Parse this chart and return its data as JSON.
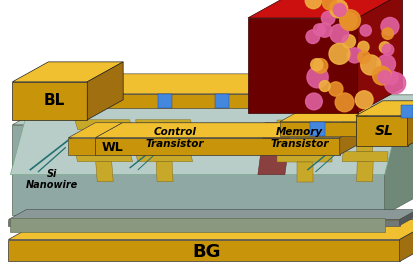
{
  "bg_color": "#ffffff",
  "labels": {
    "BL": "BL",
    "WL": "WL",
    "SL": "SL",
    "BG": "BG",
    "control": "Control\nTransistor",
    "memory": "Memory\nTransistor",
    "nanowire": "Si\nNanowire"
  },
  "colors": {
    "gold_front": "#C8940A",
    "gold_top": "#F0C030",
    "gold_side": "#A07010",
    "gold_mid": "#DAA520",
    "red_front": "#6B0000",
    "red_top": "#CC1010",
    "red_side": "#880808",
    "blue": "#4488DD",
    "teal": "#207070",
    "brown": "#8B4040",
    "brown_dark": "#6B2828",
    "substrate": "#B8CCC8",
    "substrate_dark": "#90A8A4",
    "substrate_edge": "#708878",
    "gray_layer": "#707878",
    "gray_layer_dark": "#505858",
    "polymer_orange": "#E8922A",
    "polymer_pink": "#E060A0",
    "polymer_yellow": "#F0B040",
    "contact_gold": "#C8A828",
    "contact_dark": "#906010"
  }
}
